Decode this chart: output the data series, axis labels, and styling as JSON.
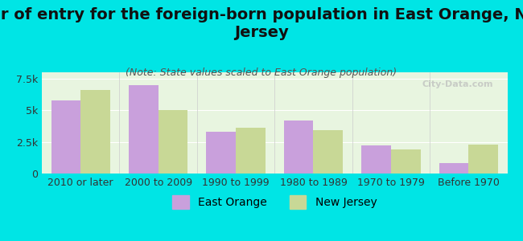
{
  "title": "Year of entry for the foreign-born population in East Orange, New\nJersey",
  "subtitle": "(Note: State values scaled to East Orange population)",
  "categories": [
    "2010 or later",
    "2000 to 2009",
    "1990 to 1999",
    "1980 to 1989",
    "1970 to 1979",
    "Before 1970"
  ],
  "east_orange": [
    5800,
    7000,
    3300,
    4200,
    2200,
    800
  ],
  "new_jersey": [
    6600,
    5000,
    3600,
    3400,
    1900,
    2300
  ],
  "east_orange_color": "#c9a0dc",
  "new_jersey_color": "#c8d896",
  "background_color": "#00e5e5",
  "plot_bg_color_top": "#f0f8f0",
  "plot_bg_color_bottom": "#ffffff",
  "ylabel_ticks": [
    0,
    2500,
    5000,
    7500
  ],
  "ylabel_tick_labels": [
    "0",
    "2.5k",
    "5k",
    "7.5k"
  ],
  "ylim": [
    0,
    8000
  ],
  "bar_width": 0.38,
  "watermark": "City-Data.com",
  "legend_east_orange": "East Orange",
  "legend_new_jersey": "New Jersey",
  "title_fontsize": 14,
  "subtitle_fontsize": 9,
  "tick_fontsize": 9,
  "legend_fontsize": 10
}
